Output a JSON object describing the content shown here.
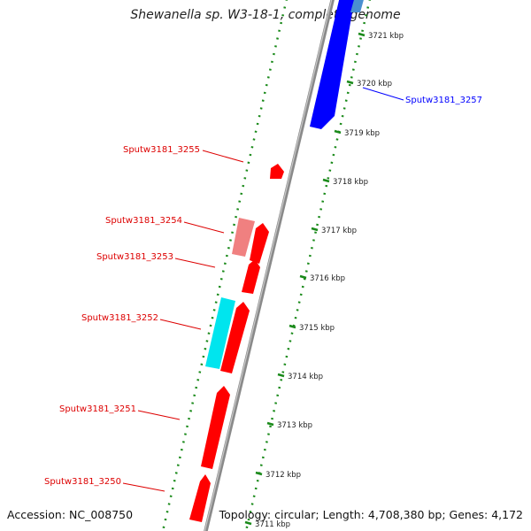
{
  "title": "Shewanella sp. W3-18-1, complete genome",
  "accession": "Accession: NC_008750",
  "summary": "Topology: circular; Length: 4,708,380 bp; Genes: 4,172",
  "colors": {
    "forward_cds": "#ff0000",
    "forward_cds_light": "#f08080",
    "reverse_cds": "#0000ff",
    "reverse_cds_light": "#4a90d0",
    "cyan_feature": "#00e5ee",
    "backbone": "#888888",
    "dotted_ring": "#1a8a1a",
    "tick_label_text": "#222222"
  },
  "ticks": [
    {
      "label": "3711 kbp"
    },
    {
      "label": "3712 kbp"
    },
    {
      "label": "3713 kbp"
    },
    {
      "label": "3714 kbp"
    },
    {
      "label": "3715 kbp"
    },
    {
      "label": "3716 kbp"
    },
    {
      "label": "3717 kbp"
    },
    {
      "label": "3718 kbp"
    },
    {
      "label": "3719 kbp"
    },
    {
      "label": "3720 kbp"
    },
    {
      "label": "3721 kbp"
    }
  ],
  "gene_labels": [
    {
      "name": "Sputw3181_3257",
      "color": "#0000ff"
    },
    {
      "name": "Sputw3181_3255",
      "color": "#dd0000"
    },
    {
      "name": "Sputw3181_3254",
      "color": "#dd0000"
    },
    {
      "name": "Sputw3181_3253",
      "color": "#dd0000"
    },
    {
      "name": "Sputw3181_3252",
      "color": "#dd0000"
    },
    {
      "name": "Sputw3181_3251",
      "color": "#dd0000"
    },
    {
      "name": "Sputw3181_3250",
      "color": "#dd0000"
    }
  ]
}
